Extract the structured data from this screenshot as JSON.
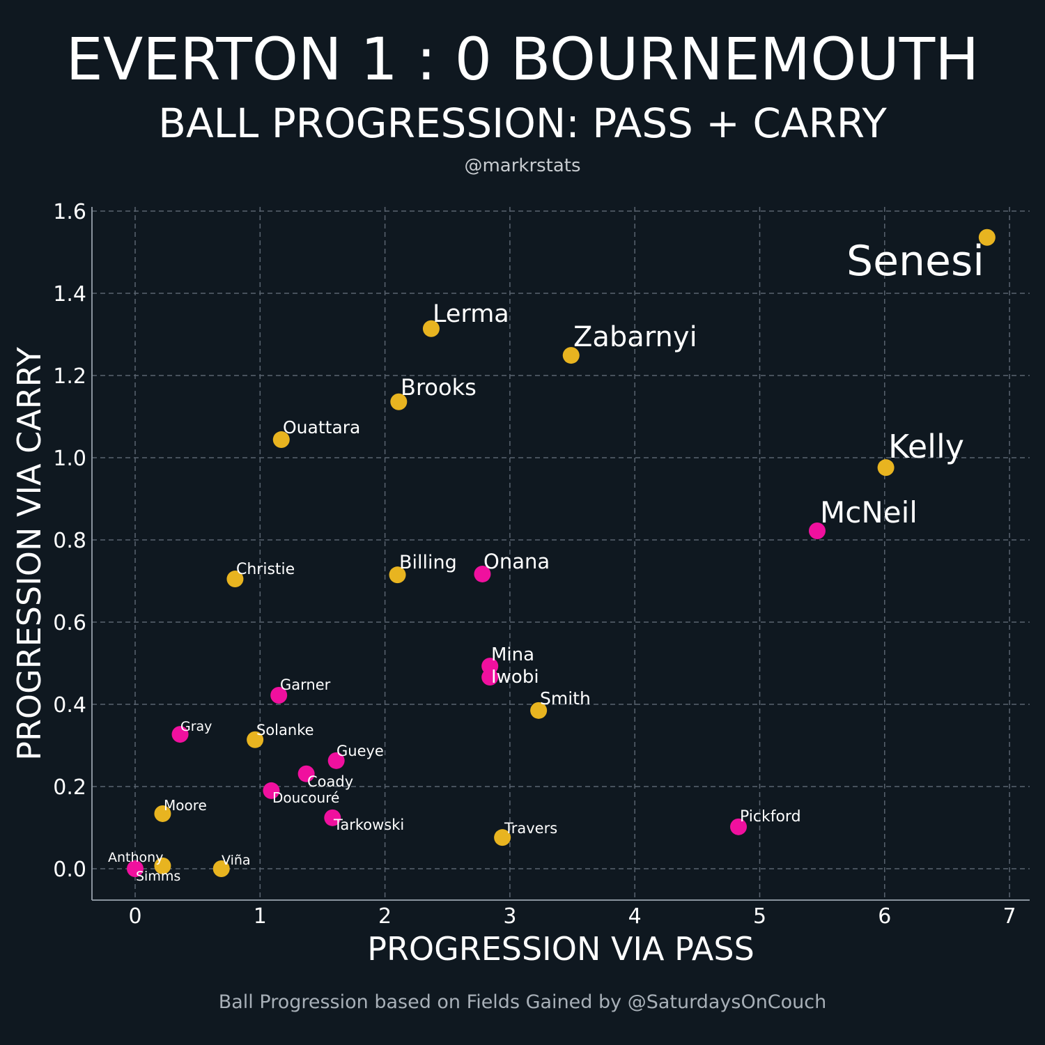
{
  "header": {
    "title": "EVERTON 1 : 0 BOURNEMOUTH",
    "subtitle": "BALL PROGRESSION: PASS + CARRY",
    "handle": "@markrstats"
  },
  "footer": {
    "caption": "Ball Progression based on Fields Gained by @SaturdaysOnCouch"
  },
  "colors": {
    "background": "#0f1820",
    "everton": "#f0109e",
    "bournemouth": "#e8b420",
    "grid": "#5a6470",
    "text": "#ffffff"
  },
  "chart_data": {
    "type": "scatter",
    "title": "EVERTON 1 : 0 BOURNEMOUTH",
    "xlabel": "PROGRESSION VIA PASS",
    "ylabel": "PROGRESSION VIA CARRY",
    "xlim": [
      -0.35,
      7.15
    ],
    "ylim": [
      -0.075,
      1.62
    ],
    "xticks": [
      "0",
      "1",
      "2",
      "3",
      "4",
      "5",
      "6",
      "7"
    ],
    "yticks": [
      "0.0",
      "0.2",
      "0.4",
      "0.6",
      "0.8",
      "1.0",
      "1.2",
      "1.4",
      "1.6"
    ],
    "grid": true,
    "series": [
      {
        "team": "bournemouth",
        "points": [
          {
            "name": "Senesi",
            "x": 6.82,
            "y": 1.536
          },
          {
            "name": "Lerma",
            "x": 2.37,
            "y": 1.314
          },
          {
            "name": "Zabarnyi",
            "x": 3.49,
            "y": 1.249
          },
          {
            "name": "Brooks",
            "x": 2.11,
            "y": 1.136
          },
          {
            "name": "Ouattara",
            "x": 1.17,
            "y": 1.044
          },
          {
            "name": "Kelly",
            "x": 6.01,
            "y": 0.976
          },
          {
            "name": "Christie",
            "x": 0.8,
            "y": 0.705
          },
          {
            "name": "Billing",
            "x": 2.1,
            "y": 0.715
          },
          {
            "name": "Smith",
            "x": 3.23,
            "y": 0.385
          },
          {
            "name": "Solanke",
            "x": 0.96,
            "y": 0.314
          },
          {
            "name": "Moore",
            "x": 0.22,
            "y": 0.134
          },
          {
            "name": "Travers",
            "x": 2.94,
            "y": 0.076
          },
          {
            "name": "Simms",
            "x": 0.22,
            "y": 0.007
          },
          {
            "name": "Viña",
            "x": 0.69,
            "y": 0.0
          }
        ]
      },
      {
        "team": "everton",
        "points": [
          {
            "name": "McNeil",
            "x": 5.46,
            "y": 0.822
          },
          {
            "name": "Onana",
            "x": 2.78,
            "y": 0.717
          },
          {
            "name": "Mina",
            "x": 2.84,
            "y": 0.493
          },
          {
            "name": "Iwobi",
            "x": 2.84,
            "y": 0.466
          },
          {
            "name": "Garner",
            "x": 1.15,
            "y": 0.422
          },
          {
            "name": "Gray",
            "x": 0.36,
            "y": 0.327
          },
          {
            "name": "Gueye",
            "x": 1.61,
            "y": 0.263
          },
          {
            "name": "Coady",
            "x": 1.37,
            "y": 0.231
          },
          {
            "name": "Doucouré",
            "x": 1.09,
            "y": 0.19
          },
          {
            "name": "Tarkowski",
            "x": 1.58,
            "y": 0.124
          },
          {
            "name": "Pickford",
            "x": 4.83,
            "y": 0.102
          },
          {
            "name": "Anthony",
            "x": 0.0,
            "y": 0.0
          }
        ]
      }
    ]
  }
}
